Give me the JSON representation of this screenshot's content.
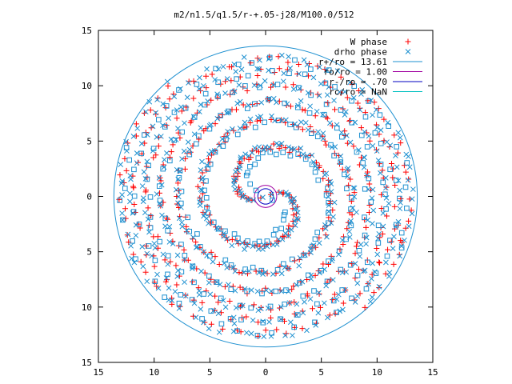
{
  "chart_data": {
    "type": "scatter",
    "title": "m2/n1.5/q1.5/r-+.05-j28/M100.0/512",
    "xlim": [
      -15,
      15
    ],
    "ylim": [
      -15,
      15
    ],
    "xticks": [
      -15,
      -10,
      -5,
      0,
      5,
      10,
      15
    ],
    "yticks": [
      -15,
      -10,
      -5,
      0,
      5,
      10,
      15
    ],
    "xtick_labels": [
      "15",
      "10",
      "5",
      "0",
      "5",
      "10",
      "15"
    ],
    "ytick_labels": [
      "15",
      "10",
      "5",
      "0",
      "5",
      "10",
      "15"
    ],
    "grid": false,
    "legend_position": "top-right",
    "colors": {
      "w_phase": "#ff0000",
      "drho_phase": "#1e90d0",
      "r_plus": "#1e90d0",
      "ro": "#a000a0",
      "r_minus": "#0000c0",
      "rc": "#00c0c0",
      "square": "#1e90d0"
    },
    "series": [
      {
        "name": "W phase",
        "marker": "plus",
        "description_points": "spiral arms",
        "spiral": {
          "r_min": 0.4,
          "r_max": 13.2,
          "turns": 3.2,
          "phase_deg": 20,
          "density": 520
        }
      },
      {
        "name": "drho phase",
        "marker": "cross",
        "spiral": {
          "r_min": 0.5,
          "r_max": 13.4,
          "turns": 3.2,
          "phase_deg": 200,
          "density": 520
        }
      },
      {
        "name": "",
        "marker": "square",
        "spiral": {
          "r_min": 1.0,
          "r_max": 13.0,
          "turns": 3.0,
          "phase_deg": 150,
          "density": 260
        }
      }
    ],
    "circles": [
      {
        "name": "r+/ro = 13.61",
        "r": 13.61
      },
      {
        "name": "ro/ro = 1.00",
        "r": 1.0
      },
      {
        "name": "r-/ro = .70",
        "r": 0.7
      },
      {
        "name": "rc/ro = NaN",
        "r": null
      }
    ]
  }
}
